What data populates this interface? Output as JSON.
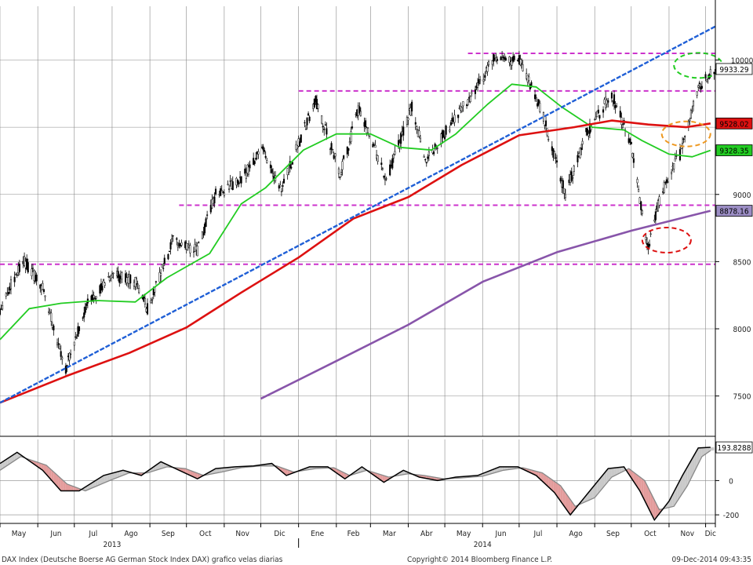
{
  "chart_data": {
    "type": "line",
    "subtype": "candlestick-with-moving-averages",
    "grid": true,
    "price_axis": {
      "range": [
        7200,
        10400
      ],
      "ticks": [
        7500,
        8000,
        8500,
        9000,
        9500,
        10000
      ],
      "tick_labels": [
        "7500",
        "8000",
        "8500",
        "9000",
        "",
        "10000"
      ]
    },
    "oscillator_axis": {
      "range": [
        -250,
        240
      ],
      "ticks": [
        -200,
        0
      ],
      "tick_labels": [
        "-200",
        "0"
      ]
    },
    "time_axis": {
      "start": "2013-05-01",
      "end": "2014-12-09",
      "month_labels": [
        {
          "label": "May",
          "date": "2013-05-01"
        },
        {
          "label": "Jun",
          "date": "2013-06-01"
        },
        {
          "label": "Jul",
          "date": "2013-07-01"
        },
        {
          "label": "Ago",
          "date": "2013-08-01"
        },
        {
          "label": "Sep",
          "date": "2013-09-01"
        },
        {
          "label": "Oct",
          "date": "2013-10-01"
        },
        {
          "label": "Nov",
          "date": "2013-11-01"
        },
        {
          "label": "Dic",
          "date": "2013-12-01"
        },
        {
          "label": "Ene",
          "date": "2014-01-01"
        },
        {
          "label": "Feb",
          "date": "2014-02-01"
        },
        {
          "label": "Mar",
          "date": "2014-03-01"
        },
        {
          "label": "Abr",
          "date": "2014-04-01"
        },
        {
          "label": "May",
          "date": "2014-05-01"
        },
        {
          "label": "Jun",
          "date": "2014-06-01"
        },
        {
          "label": "Jul",
          "date": "2014-07-01"
        },
        {
          "label": "Ago",
          "date": "2014-08-01"
        },
        {
          "label": "Sep",
          "date": "2014-09-01"
        },
        {
          "label": "Oct",
          "date": "2014-10-01"
        },
        {
          "label": "Nov",
          "date": "2014-11-01"
        },
        {
          "label": "Dic",
          "date": "2014-12-01"
        }
      ],
      "year_labels": [
        {
          "label": "2013",
          "date": "2013-08-01"
        },
        {
          "label": "2014",
          "date": "2014-06-01"
        }
      ]
    },
    "price_path": [
      [
        "2013-05-01",
        8150
      ],
      [
        "2013-05-20",
        8520
      ],
      [
        "2013-06-05",
        8300
      ],
      [
        "2013-06-24",
        7700
      ],
      [
        "2013-07-12",
        8200
      ],
      [
        "2013-08-01",
        8400
      ],
      [
        "2013-08-20",
        8350
      ],
      [
        "2013-08-30",
        8150
      ],
      [
        "2013-09-20",
        8650
      ],
      [
        "2013-10-10",
        8580
      ],
      [
        "2013-10-25",
        9000
      ],
      [
        "2013-11-15",
        9100
      ],
      [
        "2013-12-01",
        9350
      ],
      [
        "2013-12-18",
        9050
      ],
      [
        "2014-01-15",
        9700
      ],
      [
        "2014-02-04",
        9150
      ],
      [
        "2014-02-20",
        9650
      ],
      [
        "2014-03-14",
        9100
      ],
      [
        "2014-04-04",
        9650
      ],
      [
        "2014-04-15",
        9250
      ],
      [
        "2014-05-20",
        9700
      ],
      [
        "2014-06-10",
        10000
      ],
      [
        "2014-07-01",
        10000
      ],
      [
        "2014-07-20",
        9600
      ],
      [
        "2014-08-08",
        9000
      ],
      [
        "2014-08-25",
        9450
      ],
      [
        "2014-09-15",
        9750
      ],
      [
        "2014-09-30",
        9400
      ],
      [
        "2014-10-15",
        8600
      ],
      [
        "2014-10-25",
        9000
      ],
      [
        "2014-11-10",
        9300
      ],
      [
        "2014-11-25",
        9800
      ],
      [
        "2014-12-09",
        9933
      ]
    ],
    "series": [
      {
        "name": "",
        "color": "#22cc22",
        "style": "solid",
        "width": 1.8,
        "points": [
          [
            "2013-05-01",
            7920
          ],
          [
            "2013-05-25",
            8150
          ],
          [
            "2013-06-20",
            8190
          ],
          [
            "2013-07-20",
            8210
          ],
          [
            "2013-08-20",
            8200
          ],
          [
            "2013-09-15",
            8380
          ],
          [
            "2013-10-20",
            8560
          ],
          [
            "2013-11-15",
            8930
          ],
          [
            "2013-12-05",
            9050
          ],
          [
            "2014-01-05",
            9330
          ],
          [
            "2014-02-01",
            9450
          ],
          [
            "2014-03-01",
            9450
          ],
          [
            "2014-03-25",
            9350
          ],
          [
            "2014-04-20",
            9330
          ],
          [
            "2014-05-10",
            9450
          ],
          [
            "2014-06-05",
            9670
          ],
          [
            "2014-06-25",
            9820
          ],
          [
            "2014-07-15",
            9800
          ],
          [
            "2014-08-05",
            9650
          ],
          [
            "2014-08-30",
            9500
          ],
          [
            "2014-09-25",
            9480
          ],
          [
            "2014-10-10",
            9400
          ],
          [
            "2014-11-01",
            9300
          ],
          [
            "2014-11-20",
            9280
          ],
          [
            "2014-12-05",
            9328
          ]
        ]
      },
      {
        "name": "",
        "color": "#dd1111",
        "style": "solid",
        "width": 2.6,
        "points": [
          [
            "2013-05-01",
            7450
          ],
          [
            "2013-06-25",
            7650
          ],
          [
            "2013-08-15",
            7820
          ],
          [
            "2013-10-01",
            8010
          ],
          [
            "2013-11-15",
            8270
          ],
          [
            "2014-01-01",
            8530
          ],
          [
            "2014-02-15",
            8820
          ],
          [
            "2014-04-01",
            8980
          ],
          [
            "2014-05-15",
            9220
          ],
          [
            "2014-07-01",
            9440
          ],
          [
            "2014-08-15",
            9500
          ],
          [
            "2014-09-15",
            9550
          ],
          [
            "2014-10-15",
            9520
          ],
          [
            "2014-11-15",
            9500
          ],
          [
            "2014-12-05",
            9528
          ]
        ]
      },
      {
        "name": "",
        "color": "#8855aa",
        "style": "solid",
        "width": 2.6,
        "points": [
          [
            "2013-12-01",
            7480
          ],
          [
            "2014-02-01",
            7760
          ],
          [
            "2014-04-01",
            8030
          ],
          [
            "2014-06-01",
            8350
          ],
          [
            "2014-08-01",
            8570
          ],
          [
            "2014-10-01",
            8730
          ],
          [
            "2014-12-05",
            8878
          ]
        ]
      },
      {
        "name": "",
        "color": "#1f5fd6",
        "style": "dashed",
        "width": 2.4,
        "points": [
          [
            "2013-05-01",
            7450
          ],
          [
            "2014-12-09",
            10250
          ]
        ]
      }
    ],
    "horizontal_levels": [
      {
        "value": 8480,
        "from": "2013-05-01",
        "to": "2014-12-09",
        "color": "#cc33cc"
      },
      {
        "value": 8920,
        "from": "2013-09-25",
        "to": "2014-12-09",
        "color": "#cc33cc"
      },
      {
        "value": 9770,
        "from": "2014-01-01",
        "to": "2014-12-09",
        "color": "#cc33cc"
      },
      {
        "value": 10050,
        "from": "2014-05-20",
        "to": "2014-12-09",
        "color": "#cc33cc"
      }
    ],
    "annotations": [
      {
        "type": "ellipse",
        "date": "2014-11-25",
        "value": 9960,
        "color": "#22cc22"
      },
      {
        "type": "ellipse",
        "date": "2014-11-15",
        "value": 9450,
        "color": "#ee9922"
      },
      {
        "type": "ellipse",
        "date": "2014-10-30",
        "value": 8660,
        "color": "#dd1111"
      }
    ],
    "value_tags": [
      {
        "label": "9933.29",
        "value": 9933.29,
        "bg": "#ffffff",
        "fg": "#000000"
      },
      {
        "label": "9528.02",
        "value": 9528.02,
        "bg": "#dd1111",
        "fg": "#000000"
      },
      {
        "label": "9328.35",
        "value": 9328.35,
        "bg": "#22cc22",
        "fg": "#000000"
      },
      {
        "label": "8878.16",
        "value": 8878.16,
        "bg": "#9b8dc4",
        "fg": "#000000"
      }
    ],
    "oscillator": {
      "tag": {
        "label": "193.8288",
        "value": 193.83
      },
      "main_path": [
        [
          "2013-05-01",
          100
        ],
        [
          "2013-05-15",
          165
        ],
        [
          "2013-06-05",
          60
        ],
        [
          "2013-06-20",
          -60
        ],
        [
          "2013-07-05",
          -60
        ],
        [
          "2013-07-25",
          30
        ],
        [
          "2013-08-10",
          60
        ],
        [
          "2013-08-25",
          30
        ],
        [
          "2013-09-10",
          110
        ],
        [
          "2013-09-25",
          60
        ],
        [
          "2013-10-10",
          10
        ],
        [
          "2013-10-25",
          70
        ],
        [
          "2013-11-10",
          80
        ],
        [
          "2013-11-25",
          85
        ],
        [
          "2013-12-10",
          100
        ],
        [
          "2013-12-22",
          30
        ],
        [
          "2014-01-10",
          80
        ],
        [
          "2014-01-25",
          80
        ],
        [
          "2014-02-08",
          10
        ],
        [
          "2014-02-22",
          80
        ],
        [
          "2014-03-12",
          -10
        ],
        [
          "2014-03-28",
          60
        ],
        [
          "2014-04-10",
          20
        ],
        [
          "2014-04-25",
          0
        ],
        [
          "2014-05-10",
          20
        ],
        [
          "2014-05-28",
          30
        ],
        [
          "2014-06-15",
          80
        ],
        [
          "2014-06-30",
          80
        ],
        [
          "2014-07-15",
          30
        ],
        [
          "2014-07-30",
          -70
        ],
        [
          "2014-08-12",
          -200
        ],
        [
          "2014-08-28",
          -60
        ],
        [
          "2014-09-12",
          70
        ],
        [
          "2014-09-25",
          80
        ],
        [
          "2014-10-08",
          -60
        ],
        [
          "2014-10-20",
          -230
        ],
        [
          "2014-11-01",
          -120
        ],
        [
          "2014-11-12",
          30
        ],
        [
          "2014-11-25",
          190
        ],
        [
          "2014-12-05",
          194
        ]
      ],
      "signal_path": [
        [
          "2013-05-01",
          60
        ],
        [
          "2013-05-18",
          140
        ],
        [
          "2013-06-08",
          90
        ],
        [
          "2013-06-25",
          -20
        ],
        [
          "2013-07-10",
          -60
        ],
        [
          "2013-07-30",
          0
        ],
        [
          "2013-08-15",
          45
        ],
        [
          "2013-08-30",
          45
        ],
        [
          "2013-09-15",
          80
        ],
        [
          "2013-09-30",
          70
        ],
        [
          "2013-10-15",
          30
        ],
        [
          "2013-10-30",
          50
        ],
        [
          "2013-11-15",
          75
        ],
        [
          "2013-11-30",
          85
        ],
        [
          "2013-12-14",
          85
        ],
        [
          "2013-12-28",
          50
        ],
        [
          "2014-01-15",
          70
        ],
        [
          "2014-01-30",
          75
        ],
        [
          "2014-02-12",
          30
        ],
        [
          "2014-02-26",
          60
        ],
        [
          "2014-03-16",
          20
        ],
        [
          "2014-04-01",
          40
        ],
        [
          "2014-04-14",
          30
        ],
        [
          "2014-04-30",
          10
        ],
        [
          "2014-05-14",
          15
        ],
        [
          "2014-06-01",
          25
        ],
        [
          "2014-06-18",
          60
        ],
        [
          "2014-07-04",
          75
        ],
        [
          "2014-07-20",
          45
        ],
        [
          "2014-08-04",
          -30
        ],
        [
          "2014-08-16",
          -150
        ],
        [
          "2014-09-01",
          -100
        ],
        [
          "2014-09-15",
          20
        ],
        [
          "2014-09-29",
          70
        ],
        [
          "2014-10-12",
          0
        ],
        [
          "2014-10-24",
          -170
        ],
        [
          "2014-11-05",
          -150
        ],
        [
          "2014-11-16",
          -30
        ],
        [
          "2014-11-28",
          140
        ],
        [
          "2014-12-05",
          175
        ]
      ]
    }
  },
  "footer": {
    "left": "DAX Index (Deutsche Boerse AG German Stock Index DAX) grafico velas diarias",
    "center": "Copyright© 2014 Bloomberg Finance L.P.",
    "right": "09-Dec-2014 09:43:35"
  }
}
